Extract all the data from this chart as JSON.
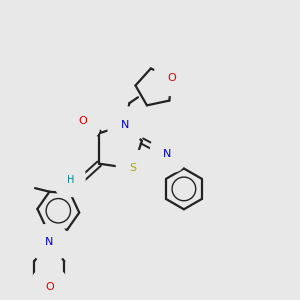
{
  "background_color": "#e8e8e8",
  "bond_color": "#222222",
  "atom_colors": {
    "O": "#dd0000",
    "N": "#0000cc",
    "S": "#aaaa00",
    "H": "#008888",
    "C": "#222222"
  },
  "figsize": [
    3.0,
    3.0
  ],
  "dpi": 100
}
